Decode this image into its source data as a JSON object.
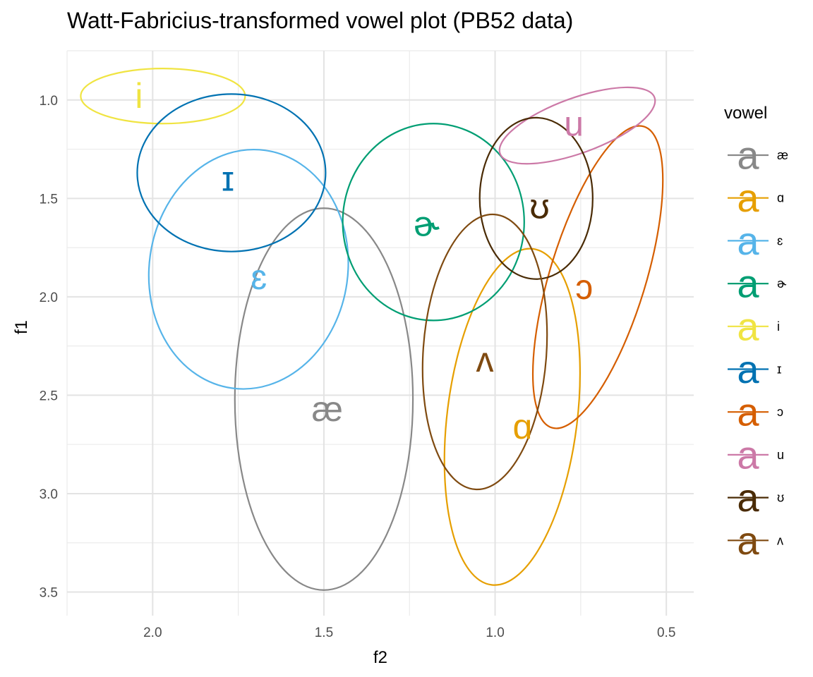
{
  "chart_data": {
    "type": "scatter",
    "title": "Watt-Fabricius-transformed vowel plot (PB52 data)",
    "xlabel": "f2",
    "ylabel": "f1",
    "x_reversed": true,
    "y_reversed": true,
    "xlim": [
      2.25,
      0.42
    ],
    "ylim": [
      0.75,
      3.62
    ],
    "x_ticks": [
      {
        "value": 2.0,
        "label": "2.0"
      },
      {
        "value": 1.5,
        "label": "1.5"
      },
      {
        "value": 1.0,
        "label": "1.0"
      },
      {
        "value": 0.5,
        "label": "0.5"
      }
    ],
    "y_ticks": [
      {
        "value": 1.0,
        "label": "1.0"
      },
      {
        "value": 1.5,
        "label": "1.5"
      },
      {
        "value": 2.0,
        "label": "2.0"
      },
      {
        "value": 2.5,
        "label": "2.5"
      },
      {
        "value": 3.0,
        "label": "3.0"
      },
      {
        "value": 3.5,
        "label": "3.5"
      }
    ],
    "grid": true,
    "legend": {
      "title": "vowel",
      "position": "right",
      "key_glyph": "a"
    },
    "series": [
      {
        "name": "æ",
        "color": "#888888",
        "mean_f2": 1.49,
        "mean_f1": 2.57,
        "ellipse": {
          "cx_f2": 1.5,
          "cy_f1": 2.52,
          "rx_f2": 0.26,
          "ry_f1": 0.97,
          "angle_deg": 0
        }
      },
      {
        "name": "ɑ",
        "color": "#E69F00",
        "mean_f2": 0.92,
        "mean_f1": 2.66,
        "ellipse": {
          "cx_f2": 0.95,
          "cy_f1": 2.61,
          "rx_f2": 0.19,
          "ry_f1": 0.86,
          "angle_deg": 7
        }
      },
      {
        "name": "ɛ",
        "color": "#56B4E9",
        "mean_f2": 1.69,
        "mean_f1": 1.9,
        "ellipse": {
          "cx_f2": 1.72,
          "cy_f1": 1.86,
          "rx_f2": 0.29,
          "ry_f1": 0.61,
          "angle_deg": 8
        }
      },
      {
        "name": "ɚ",
        "color": "#009E73",
        "mean_f2": 1.2,
        "mean_f1": 1.63,
        "ellipse": {
          "cx_f2": 1.18,
          "cy_f1": 1.62,
          "rx_f2": 0.265,
          "ry_f1": 0.5,
          "angle_deg": 0
        }
      },
      {
        "name": "i",
        "color": "#F0E442",
        "mean_f2": 2.04,
        "mean_f1": 0.98,
        "ellipse": {
          "cx_f2": 1.97,
          "cy_f1": 0.98,
          "rx_f2": 0.24,
          "ry_f1": 0.14,
          "angle_deg": 0
        }
      },
      {
        "name": "ɪ",
        "color": "#0072B2",
        "mean_f2": 1.78,
        "mean_f1": 1.4,
        "ellipse": {
          "cx_f2": 1.77,
          "cy_f1": 1.37,
          "rx_f2": 0.275,
          "ry_f1": 0.4,
          "angle_deg": 0
        }
      },
      {
        "name": "ɔ",
        "color": "#D55E00",
        "mean_f2": 0.74,
        "mean_f1": 1.95,
        "ellipse": {
          "cx_f2": 0.7,
          "cy_f1": 1.9,
          "rx_f2": 0.14,
          "ry_f1": 0.8,
          "angle_deg": 17
        }
      },
      {
        "name": "u",
        "color": "#CC79A7",
        "mean_f2": 0.77,
        "mean_f1": 1.12,
        "ellipse": {
          "cx_f2": 0.76,
          "cy_f1": 1.13,
          "rx_f2": 0.24,
          "ry_f1": 0.14,
          "angle_deg": -20
        }
      },
      {
        "name": "ʊ",
        "color": "#4A2B05",
        "mean_f2": 0.87,
        "mean_f1": 1.54,
        "ellipse": {
          "cx_f2": 0.88,
          "cy_f1": 1.5,
          "rx_f2": 0.165,
          "ry_f1": 0.41,
          "angle_deg": 0
        }
      },
      {
        "name": "ʌ",
        "color": "#7F4A10",
        "mean_f2": 1.03,
        "mean_f1": 2.32,
        "ellipse": {
          "cx_f2": 1.03,
          "cy_f1": 2.28,
          "rx_f2": 0.18,
          "ry_f1": 0.7,
          "angle_deg": 4
        }
      }
    ]
  }
}
